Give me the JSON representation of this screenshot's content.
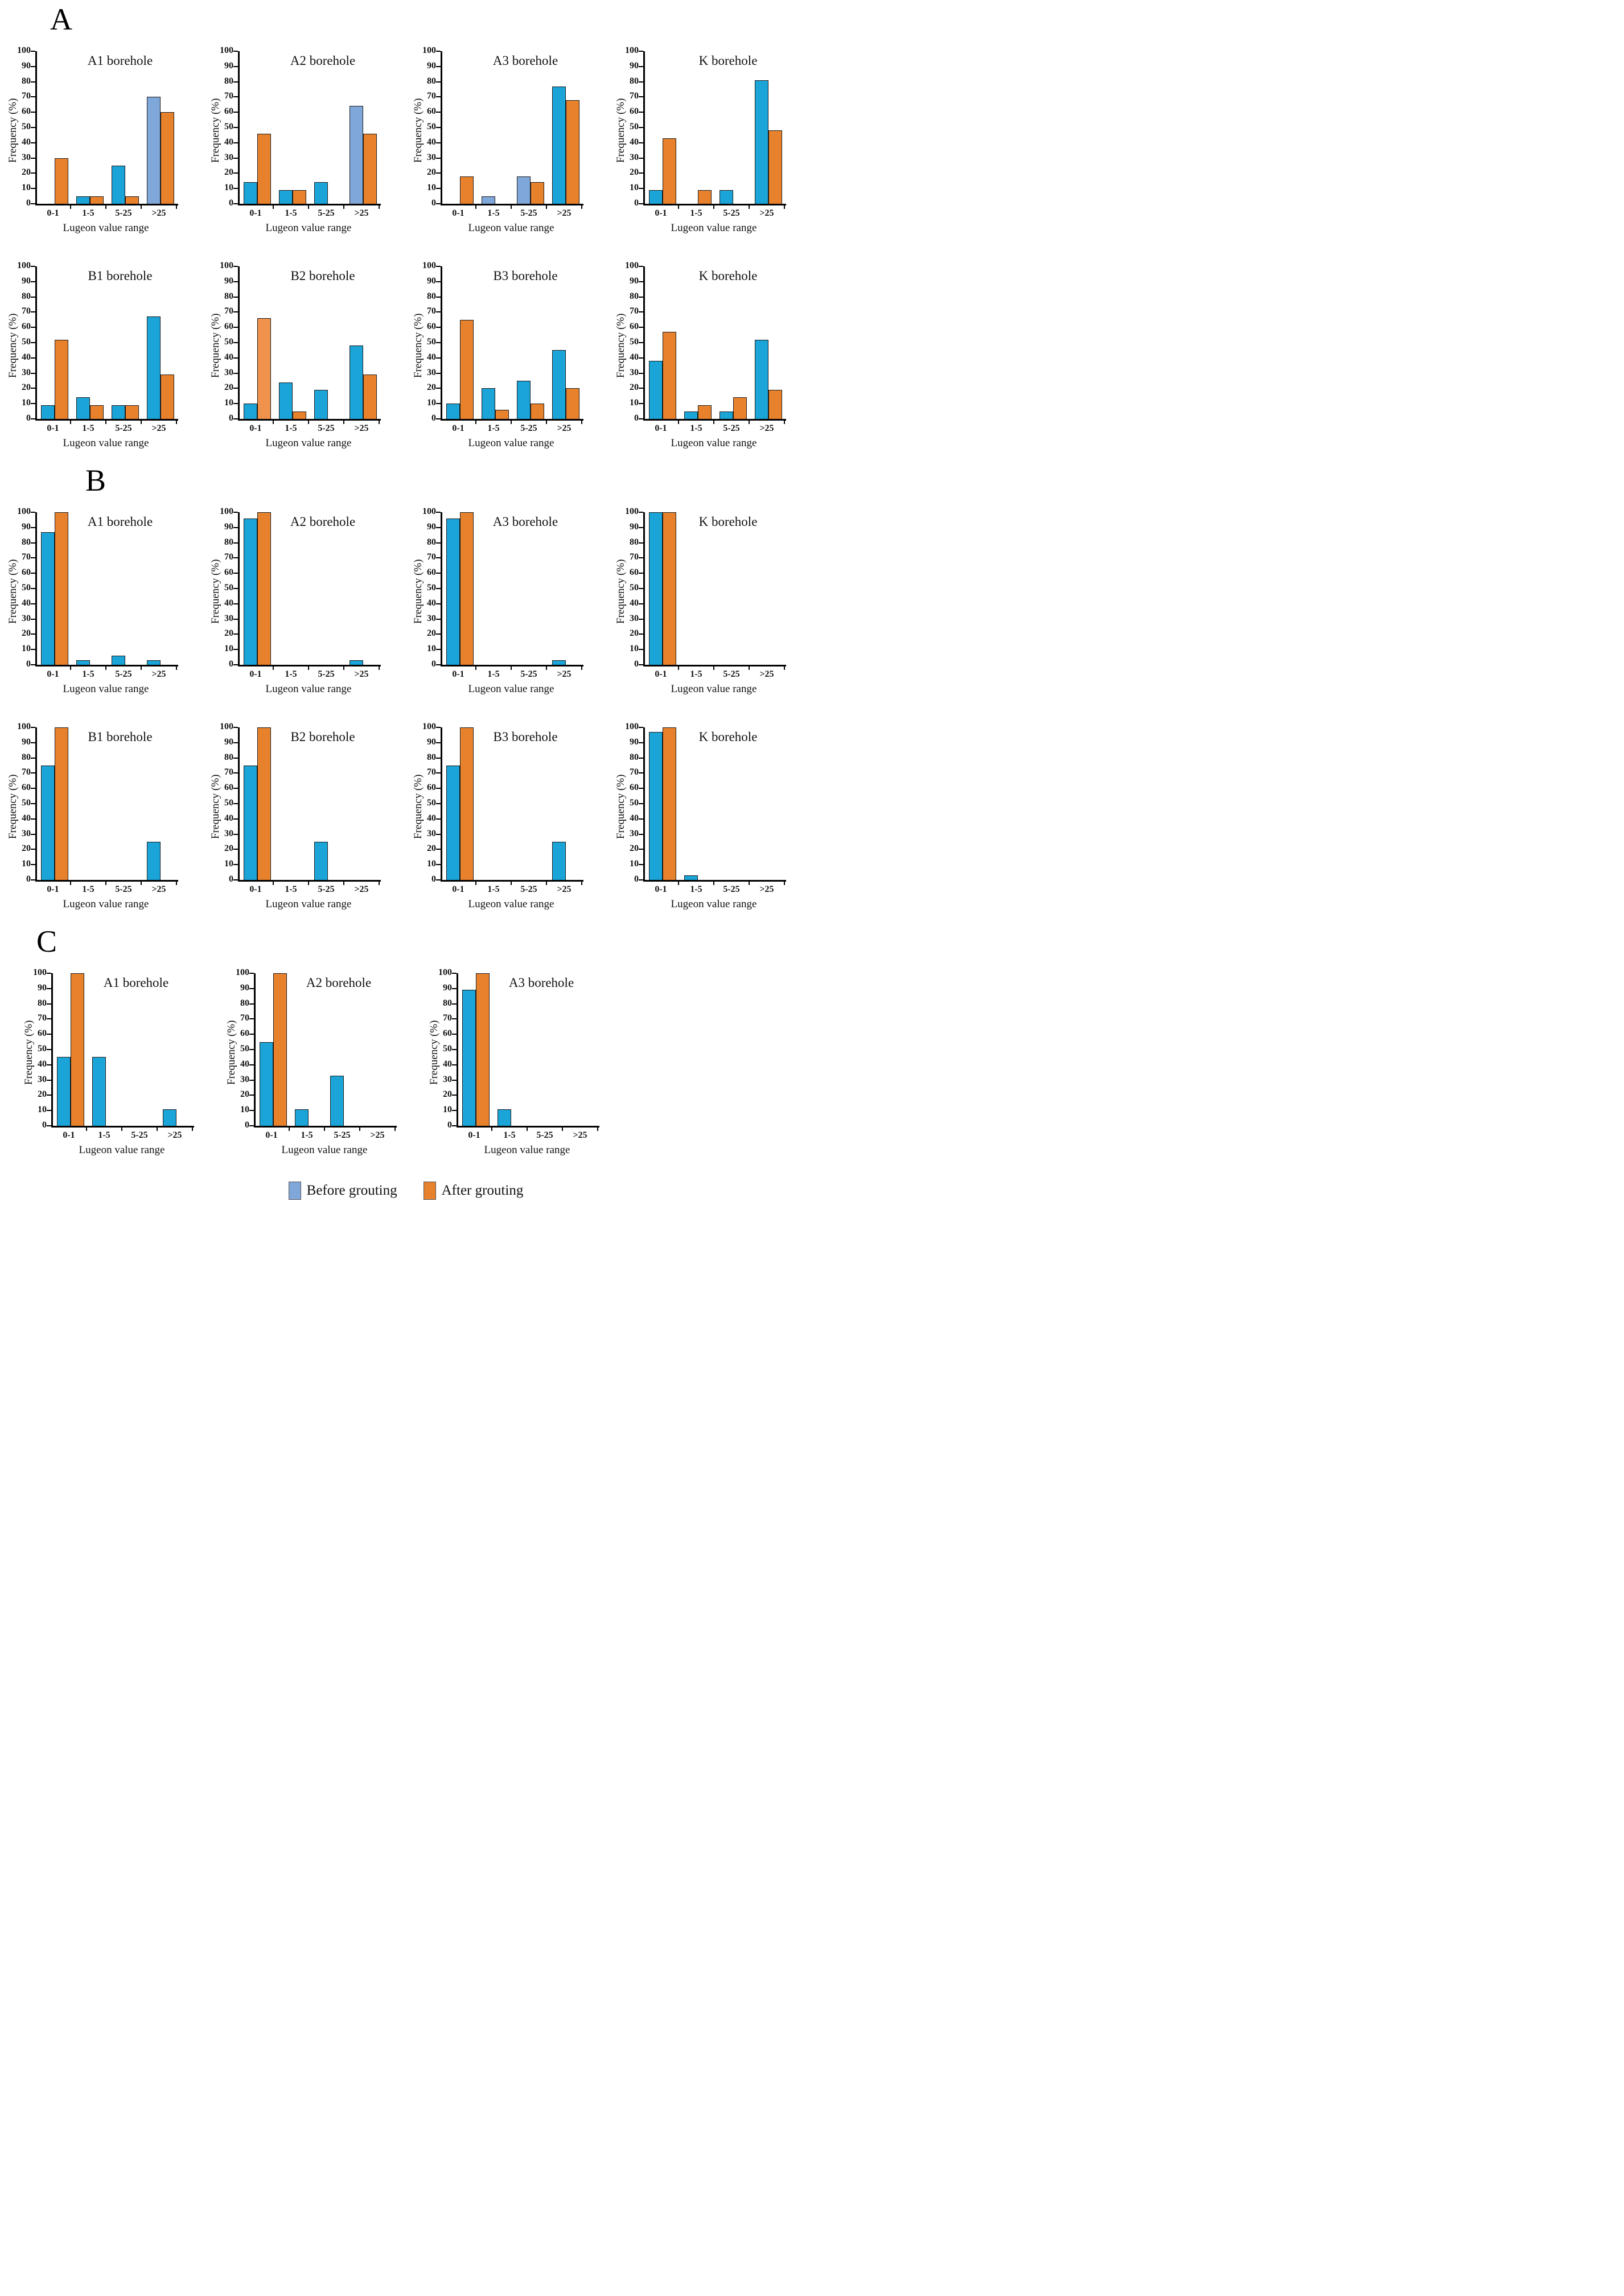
{
  "figure": {
    "ylabel": "Frequency (%)",
    "xlabel": "Lugeon value range",
    "categories": [
      "0-1",
      "1-5",
      "5-25",
      ">25"
    ],
    "yticks": [
      0,
      10,
      20,
      30,
      40,
      50,
      60,
      70,
      80,
      90,
      100
    ],
    "sections": [
      {
        "label": "A",
        "rows": [
          [
            0,
            1,
            2,
            3
          ],
          [
            4,
            5,
            6,
            7
          ]
        ]
      },
      {
        "label": "B",
        "rows": [
          [
            8,
            9,
            10,
            11
          ],
          [
            12,
            13,
            14,
            15
          ]
        ]
      },
      {
        "label": "C",
        "rows": [
          [
            16,
            17,
            18
          ]
        ]
      }
    ]
  },
  "colors": {
    "blue": "#1BA4D8",
    "light_blue": "#7FA7D9",
    "orange": "#E8812C",
    "light_orange": "#F0924C",
    "axis": "#000000"
  },
  "legend": {
    "before_label": "Before grouting",
    "after_label": "After grouting",
    "before_color": "#7FA7D9",
    "after_color": "#E8812C"
  },
  "chart_data": [
    {
      "type": "bar",
      "section": "A",
      "title": "A1 borehole",
      "xlabel": "Lugeon value range",
      "ylabel": "Frequency (%)",
      "ylim": [
        0,
        100
      ],
      "categories": [
        "0-1",
        "1-5",
        "5-25",
        ">25"
      ],
      "series": [
        {
          "name": "Before grouting",
          "values": [
            0,
            5,
            25,
            70
          ],
          "colors": [
            "blue",
            "blue",
            "blue",
            "light_blue"
          ]
        },
        {
          "name": "After grouting",
          "values": [
            30,
            5,
            5,
            60
          ]
        }
      ]
    },
    {
      "type": "bar",
      "section": "A",
      "title": "A2 borehole",
      "xlabel": "Lugeon value range",
      "ylabel": "Frequency (%)",
      "ylim": [
        0,
        100
      ],
      "categories": [
        "0-1",
        "1-5",
        "5-25",
        ">25"
      ],
      "series": [
        {
          "name": "Before grouting",
          "values": [
            14,
            9,
            14,
            64
          ],
          "colors": [
            "blue",
            "blue",
            "blue",
            "light_blue"
          ]
        },
        {
          "name": "After grouting",
          "values": [
            46,
            9,
            0,
            46
          ]
        }
      ]
    },
    {
      "type": "bar",
      "section": "A",
      "title": "A3 borehole",
      "xlabel": "Lugeon value range",
      "ylabel": "Frequency (%)",
      "ylim": [
        0,
        100
      ],
      "categories": [
        "0-1",
        "1-5",
        "5-25",
        ">25"
      ],
      "series": [
        {
          "name": "Before grouting",
          "values": [
            0,
            5,
            18,
            77
          ],
          "colors": [
            "blue",
            "light_blue",
            "light_blue",
            "blue"
          ]
        },
        {
          "name": "After grouting",
          "values": [
            18,
            0,
            14,
            68
          ]
        }
      ]
    },
    {
      "type": "bar",
      "section": "A",
      "title": "K borehole",
      "xlabel": "Lugeon value range",
      "ylabel": "Frequency (%)",
      "ylim": [
        0,
        100
      ],
      "categories": [
        "0-1",
        "1-5",
        "5-25",
        ">25"
      ],
      "series": [
        {
          "name": "Before grouting",
          "values": [
            9,
            0,
            9,
            81
          ]
        },
        {
          "name": "After grouting",
          "values": [
            43,
            9,
            0,
            48
          ]
        }
      ]
    },
    {
      "type": "bar",
      "section": "A",
      "title": "B1 borehole",
      "xlabel": "Lugeon value range",
      "ylabel": "Frequency (%)",
      "ylim": [
        0,
        100
      ],
      "categories": [
        "0-1",
        "1-5",
        "5-25",
        ">25"
      ],
      "series": [
        {
          "name": "Before grouting",
          "values": [
            9,
            14,
            9,
            67
          ]
        },
        {
          "name": "After grouting",
          "values": [
            52,
            9,
            9,
            29
          ]
        }
      ]
    },
    {
      "type": "bar",
      "section": "A",
      "title": "B2 borehole",
      "xlabel": "Lugeon value range",
      "ylabel": "Frequency (%)",
      "ylim": [
        0,
        100
      ],
      "categories": [
        "0-1",
        "1-5",
        "5-25",
        ">25"
      ],
      "series": [
        {
          "name": "Before grouting",
          "values": [
            10,
            24,
            19,
            48
          ]
        },
        {
          "name": "After grouting",
          "values": [
            66,
            5,
            0,
            29
          ],
          "colors": [
            "light_orange",
            "orange",
            "orange",
            "orange"
          ]
        }
      ]
    },
    {
      "type": "bar",
      "section": "A",
      "title": "B3 borehole",
      "xlabel": "Lugeon value range",
      "ylabel": "Frequency (%)",
      "ylim": [
        0,
        100
      ],
      "categories": [
        "0-1",
        "1-5",
        "5-25",
        ">25"
      ],
      "series": [
        {
          "name": "Before grouting",
          "values": [
            10,
            20,
            25,
            45
          ]
        },
        {
          "name": "After grouting",
          "values": [
            65,
            6,
            10,
            20
          ]
        }
      ]
    },
    {
      "type": "bar",
      "section": "A",
      "title": "K borehole",
      "xlabel": "Lugeon value range",
      "ylabel": "Frequency (%)",
      "ylim": [
        0,
        100
      ],
      "categories": [
        "0-1",
        "1-5",
        "5-25",
        ">25"
      ],
      "series": [
        {
          "name": "Before grouting",
          "values": [
            38,
            5,
            5,
            52
          ]
        },
        {
          "name": "After grouting",
          "values": [
            57,
            9,
            14,
            19
          ]
        }
      ]
    },
    {
      "type": "bar",
      "section": "B",
      "title": "A1 borehole",
      "xlabel": "Lugeon value range",
      "ylabel": "Frequency (%)",
      "ylim": [
        0,
        100
      ],
      "categories": [
        "0-1",
        "1-5",
        "5-25",
        ">25"
      ],
      "series": [
        {
          "name": "Before grouting",
          "values": [
            87,
            3,
            6,
            3
          ]
        },
        {
          "name": "After grouting",
          "values": [
            100,
            0,
            0,
            0
          ]
        }
      ]
    },
    {
      "type": "bar",
      "section": "B",
      "title": "A2 borehole",
      "xlabel": "Lugeon value range",
      "ylabel": "Frequency (%)",
      "ylim": [
        0,
        100
      ],
      "categories": [
        "0-1",
        "1-5",
        "5-25",
        ">25"
      ],
      "series": [
        {
          "name": "Before grouting",
          "values": [
            96,
            0,
            0,
            3
          ]
        },
        {
          "name": "After grouting",
          "values": [
            100,
            0,
            0,
            0
          ]
        }
      ]
    },
    {
      "type": "bar",
      "section": "B",
      "title": "A3 borehole",
      "xlabel": "Lugeon value range",
      "ylabel": "Frequency (%)",
      "ylim": [
        0,
        100
      ],
      "categories": [
        "0-1",
        "1-5",
        "5-25",
        ">25"
      ],
      "series": [
        {
          "name": "Before grouting",
          "values": [
            96,
            0,
            0,
            3
          ]
        },
        {
          "name": "After grouting",
          "values": [
            100,
            0,
            0,
            0
          ]
        }
      ]
    },
    {
      "type": "bar",
      "section": "B",
      "title": "K borehole",
      "xlabel": "Lugeon value range",
      "ylabel": "Frequency (%)",
      "ylim": [
        0,
        100
      ],
      "categories": [
        "0-1",
        "1-5",
        "5-25",
        ">25"
      ],
      "series": [
        {
          "name": "Before grouting",
          "values": [
            100,
            0,
            0,
            0
          ]
        },
        {
          "name": "After grouting",
          "values": [
            100,
            0,
            0,
            0
          ]
        }
      ]
    },
    {
      "type": "bar",
      "section": "B",
      "title": "B1 borehole",
      "xlabel": "Lugeon value range",
      "ylabel": "Frequency (%)",
      "ylim": [
        0,
        100
      ],
      "categories": [
        "0-1",
        "1-5",
        "5-25",
        ">25"
      ],
      "series": [
        {
          "name": "Before grouting",
          "values": [
            75,
            0,
            0,
            25
          ]
        },
        {
          "name": "After grouting",
          "values": [
            100,
            0,
            0,
            0
          ]
        }
      ]
    },
    {
      "type": "bar",
      "section": "B",
      "title": "B2 borehole",
      "xlabel": "Lugeon value range",
      "ylabel": "Frequency (%)",
      "ylim": [
        0,
        100
      ],
      "categories": [
        "0-1",
        "1-5",
        "5-25",
        ">25"
      ],
      "series": [
        {
          "name": "Before grouting",
          "values": [
            75,
            0,
            25,
            0
          ]
        },
        {
          "name": "After grouting",
          "values": [
            100,
            0,
            0,
            0
          ]
        }
      ]
    },
    {
      "type": "bar",
      "section": "B",
      "title": "B3 borehole",
      "xlabel": "Lugeon value range",
      "ylabel": "Frequency (%)",
      "ylim": [
        0,
        100
      ],
      "categories": [
        "0-1",
        "1-5",
        "5-25",
        ">25"
      ],
      "series": [
        {
          "name": "Before grouting",
          "values": [
            75,
            0,
            0,
            25
          ]
        },
        {
          "name": "After grouting",
          "values": [
            100,
            0,
            0,
            0
          ]
        }
      ]
    },
    {
      "type": "bar",
      "section": "B",
      "title": "K borehole",
      "xlabel": "Lugeon value range",
      "ylabel": "Frequency (%)",
      "ylim": [
        0,
        100
      ],
      "categories": [
        "0-1",
        "1-5",
        "5-25",
        ">25"
      ],
      "series": [
        {
          "name": "Before grouting",
          "values": [
            97,
            3,
            0,
            0
          ]
        },
        {
          "name": "After grouting",
          "values": [
            100,
            0,
            0,
            0
          ]
        }
      ]
    },
    {
      "type": "bar",
      "section": "C",
      "title": "A1 borehole",
      "xlabel": "Lugeon value range",
      "ylabel": "Frequency (%)",
      "ylim": [
        0,
        100
      ],
      "categories": [
        "0-1",
        "1-5",
        "5-25",
        ">25"
      ],
      "series": [
        {
          "name": "Before grouting",
          "values": [
            45,
            45,
            0,
            11
          ]
        },
        {
          "name": "After grouting",
          "values": [
            100,
            0,
            0,
            0
          ]
        }
      ]
    },
    {
      "type": "bar",
      "section": "C",
      "title": "A2 borehole",
      "xlabel": "Lugeon value range",
      "ylabel": "Frequency (%)",
      "ylim": [
        0,
        100
      ],
      "categories": [
        "0-1",
        "1-5",
        "5-25",
        ">25"
      ],
      "series": [
        {
          "name": "Before grouting",
          "values": [
            55,
            11,
            33,
            0
          ]
        },
        {
          "name": "After grouting",
          "values": [
            100,
            0,
            0,
            0
          ]
        }
      ]
    },
    {
      "type": "bar",
      "section": "C",
      "title": "A3 borehole",
      "xlabel": "Lugeon value range",
      "ylabel": "Frequency (%)",
      "ylim": [
        0,
        100
      ],
      "categories": [
        "0-1",
        "1-5",
        "5-25",
        ">25"
      ],
      "series": [
        {
          "name": "Before grouting",
          "values": [
            89,
            11,
            0,
            0
          ]
        },
        {
          "name": "After grouting",
          "values": [
            100,
            0,
            0,
            0
          ]
        }
      ]
    }
  ]
}
